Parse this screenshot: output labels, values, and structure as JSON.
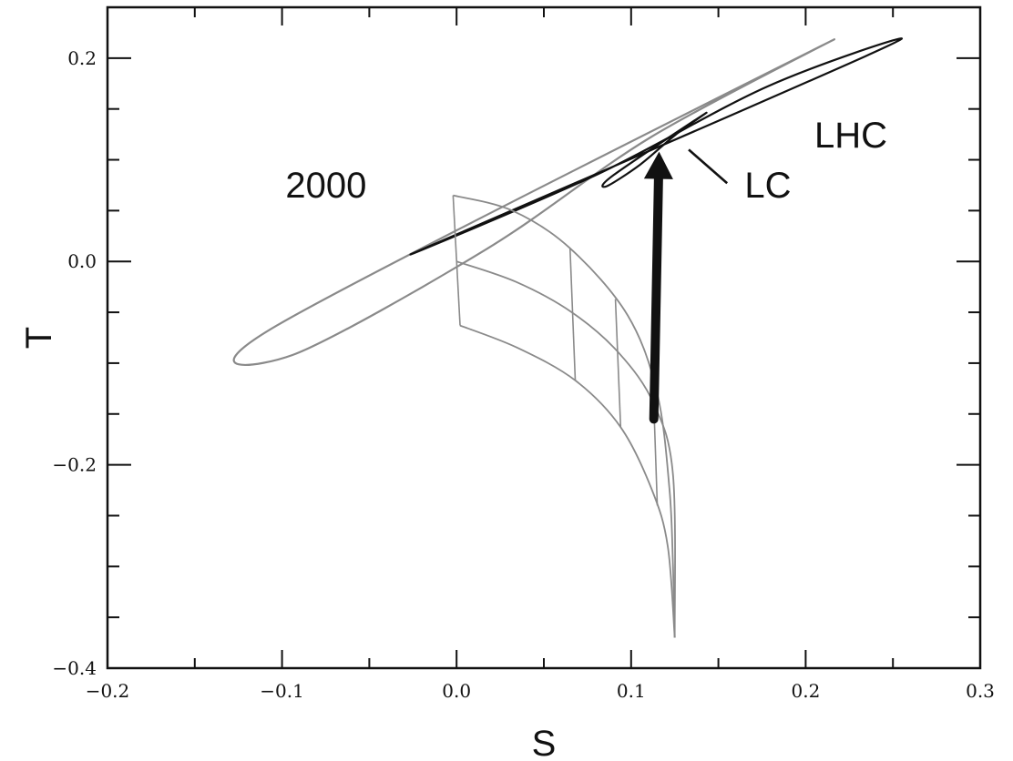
{
  "chart_data": {
    "type": "scatter",
    "title": "",
    "xlabel": "S",
    "ylabel": "T",
    "xlim": [
      -0.2,
      0.3
    ],
    "ylim": [
      -0.4,
      0.25
    ],
    "xticks": [
      -0.2,
      -0.1,
      0.0,
      0.1,
      0.2,
      0.3
    ],
    "xtick_labels": [
      "−0.2",
      "−0.1",
      "0.0",
      "0.1",
      "0.2",
      "0.3"
    ],
    "yticks": [
      -0.4,
      -0.2,
      0.0,
      0.2
    ],
    "ytick_labels": [
      "−0.4",
      "−0.2",
      "0.0",
      "0.2"
    ],
    "grid": false,
    "colors": {
      "gray": "#8a8a8a",
      "black": "#111111"
    },
    "series": [
      {
        "kind": "ellipse",
        "color": "gray",
        "width": 2.2,
        "points": [
          [
            -0.094,
            -0.092
          ],
          [
            0.017,
            0.012
          ],
          [
            0.111,
            0.122
          ],
          [
            0.209,
            0.212
          ],
          [
            -0.103,
            -0.063
          ]
        ]
      },
      {
        "kind": "ellipse",
        "color": "black",
        "width": 2.2,
        "points": [
          [
            -0.025,
            0.008
          ],
          [
            0.081,
            0.086
          ],
          [
            0.178,
            0.172
          ],
          [
            0.255,
            0.219
          ],
          [
            0.163,
            0.148
          ]
        ]
      },
      {
        "kind": "ellipse",
        "color": "black",
        "width": 2.2,
        "points": [
          [
            0.086,
            0.074
          ],
          [
            0.105,
            0.095
          ],
          [
            0.125,
            0.124
          ],
          [
            0.142,
            0.145
          ],
          [
            0.09,
            0.085
          ]
        ]
      },
      {
        "kind": "polyline",
        "color": "gray",
        "width": 1.8,
        "points": [
          [
            -0.002,
            0.065
          ],
          [
            0.032,
            0.05
          ],
          [
            0.065,
            0.013
          ],
          [
            0.098,
            -0.053
          ],
          [
            0.115,
            -0.13
          ],
          [
            0.122,
            -0.225
          ],
          [
            0.124,
            -0.3
          ],
          [
            0.125,
            -0.37
          ]
        ]
      },
      {
        "kind": "polyline",
        "color": "gray",
        "width": 1.8,
        "points": [
          [
            0.002,
            -0.063
          ],
          [
            0.035,
            -0.085
          ],
          [
            0.068,
            -0.117
          ],
          [
            0.094,
            -0.163
          ],
          [
            0.112,
            -0.225
          ],
          [
            0.121,
            -0.28
          ],
          [
            0.125,
            -0.37
          ]
        ]
      },
      {
        "kind": "polyline",
        "color": "gray",
        "width": 1.8,
        "points": [
          [
            0.0,
            0.0
          ],
          [
            0.034,
            -0.02
          ],
          [
            0.066,
            -0.05
          ],
          [
            0.093,
            -0.09
          ],
          [
            0.113,
            -0.14
          ],
          [
            0.124,
            -0.21
          ],
          [
            0.125,
            -0.37
          ]
        ]
      },
      {
        "kind": "polyline",
        "color": "gray",
        "width": 1.6,
        "points": [
          [
            -0.002,
            0.065
          ],
          [
            0.002,
            -0.063
          ]
        ]
      },
      {
        "kind": "polyline",
        "color": "gray",
        "width": 1.6,
        "points": [
          [
            0.065,
            0.013
          ],
          [
            0.068,
            -0.117
          ]
        ]
      },
      {
        "kind": "polyline",
        "color": "gray",
        "width": 1.6,
        "points": [
          [
            0.091,
            -0.037
          ],
          [
            0.094,
            -0.163
          ]
        ]
      },
      {
        "kind": "polyline",
        "color": "gray",
        "width": 1.6,
        "points": [
          [
            0.113,
            -0.14
          ],
          [
            0.115,
            -0.24
          ]
        ]
      },
      {
        "kind": "polyline",
        "color": "black",
        "width": 2.6,
        "points": [
          [
            0.133,
            0.11
          ],
          [
            0.155,
            0.077
          ]
        ]
      }
    ],
    "arrow": {
      "from": [
        0.113,
        -0.155
      ],
      "to": [
        0.116,
        0.108
      ],
      "color": "black"
    },
    "annotations": [
      {
        "text": "2000",
        "x": -0.098,
        "y": 0.063,
        "anchor": "start"
      },
      {
        "text": "LHC",
        "x": 0.205,
        "y": 0.112,
        "anchor": "start"
      },
      {
        "text": "LC",
        "x": 0.165,
        "y": 0.063,
        "anchor": "start"
      }
    ]
  }
}
